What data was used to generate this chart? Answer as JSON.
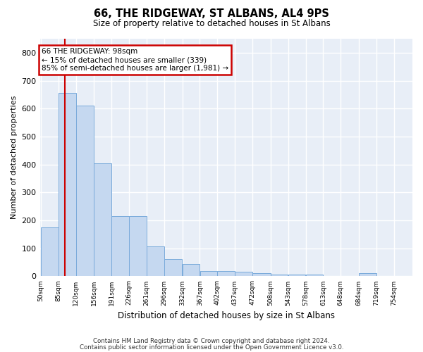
{
  "title": "66, THE RIDGEWAY, ST ALBANS, AL4 9PS",
  "subtitle": "Size of property relative to detached houses in St Albans",
  "xlabel": "Distribution of detached houses by size in St Albans",
  "ylabel": "Number of detached properties",
  "bar_color": "#c5d8f0",
  "bar_edge_color": "#7aabdb",
  "background_color": "#e8eef7",
  "grid_color": "#ffffff",
  "annotation_box_color": "#cc0000",
  "annotation_line1": "66 THE RIDGEWAY: 98sqm",
  "annotation_line2": "← 15% of detached houses are smaller (339)",
  "annotation_line3": "85% of semi-detached houses are larger (1,981) →",
  "property_line_x": 98,
  "categories": [
    "50sqm",
    "85sqm",
    "120sqm",
    "156sqm",
    "191sqm",
    "226sqm",
    "261sqm",
    "296sqm",
    "332sqm",
    "367sqm",
    "402sqm",
    "437sqm",
    "472sqm",
    "508sqm",
    "543sqm",
    "578sqm",
    "613sqm",
    "648sqm",
    "684sqm",
    "719sqm",
    "754sqm"
  ],
  "bin_edges": [
    50,
    85,
    120,
    156,
    191,
    226,
    261,
    296,
    332,
    367,
    402,
    437,
    472,
    508,
    543,
    578,
    613,
    648,
    684,
    719,
    754,
    789
  ],
  "values": [
    175,
    655,
    610,
    403,
    215,
    215,
    108,
    62,
    45,
    18,
    18,
    15,
    10,
    5,
    5,
    5,
    2,
    2,
    10,
    2,
    2
  ],
  "ylim": [
    0,
    850
  ],
  "yticks": [
    0,
    100,
    200,
    300,
    400,
    500,
    600,
    700,
    800
  ],
  "footnote_line1": "Contains HM Land Registry data © Crown copyright and database right 2024.",
  "footnote_line2": "Contains public sector information licensed under the Open Government Licence v3.0."
}
